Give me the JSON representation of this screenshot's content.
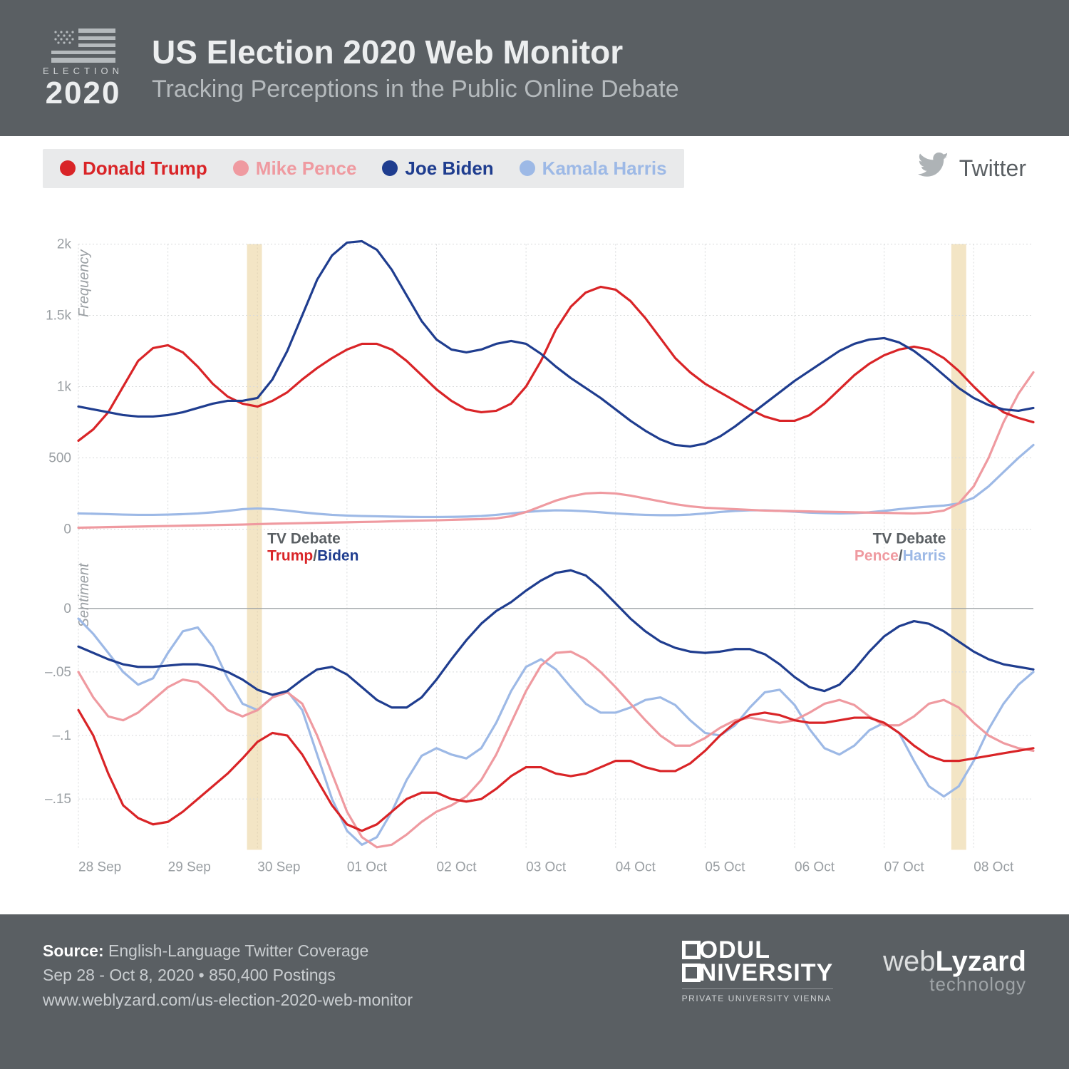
{
  "header": {
    "logo_election": "ELECTION",
    "logo_year": "2020",
    "title": "US Election 2020 Web Monitor",
    "subtitle": "Tracking Perceptions in the Public Online Debate"
  },
  "legend": {
    "items": [
      {
        "label": "Donald Trump",
        "color": "#d92427"
      },
      {
        "label": "Mike Pence",
        "color": "#ef9aa0"
      },
      {
        "label": "Joe Biden",
        "color": "#1f3d8f"
      },
      {
        "label": "Kamala Harris",
        "color": "#9db9e6"
      }
    ],
    "source_label": "Twitter"
  },
  "chart": {
    "background": "#ffffff",
    "grid_color": "#d8dadb",
    "axis_color": "#9a9fa3",
    "band_color": "#e9cf96",
    "x_dates": [
      "28 Sep",
      "29 Sep",
      "30 Sep",
      "01 Oct",
      "02 Oct",
      "03 Oct",
      "04 Oct",
      "05 Oct",
      "06 Oct",
      "07 Oct",
      "08 Oct"
    ],
    "x_samples_per_day": 6,
    "frequency": {
      "axis_label": "Frequency",
      "ymin": 0,
      "ymax": 2000,
      "yticks": [
        0,
        500,
        1000,
        1500,
        2000
      ],
      "ytick_labels": [
        "0",
        "500",
        "1k",
        "1.5k",
        "2k"
      ],
      "series": {
        "trump": [
          620,
          700,
          820,
          1000,
          1180,
          1270,
          1290,
          1240,
          1140,
          1020,
          930,
          880,
          860,
          900,
          960,
          1050,
          1130,
          1200,
          1260,
          1300,
          1300,
          1260,
          1180,
          1080,
          980,
          900,
          840,
          820,
          830,
          880,
          1000,
          1180,
          1400,
          1560,
          1660,
          1700,
          1680,
          1600,
          1480,
          1340,
          1200,
          1100,
          1020,
          960,
          900,
          840,
          790,
          760,
          760,
          800,
          880,
          980,
          1080,
          1160,
          1220,
          1260,
          1280,
          1260,
          1200,
          1110,
          1000,
          900,
          820,
          780,
          750
        ],
        "pence": [
          10,
          12,
          14,
          16,
          18,
          20,
          22,
          24,
          26,
          28,
          30,
          32,
          35,
          38,
          40,
          42,
          44,
          46,
          48,
          50,
          52,
          55,
          58,
          60,
          62,
          65,
          68,
          70,
          75,
          90,
          120,
          160,
          200,
          230,
          250,
          255,
          250,
          235,
          215,
          195,
          175,
          160,
          150,
          145,
          140,
          135,
          130,
          128,
          126,
          124,
          122,
          120,
          118,
          116,
          114,
          112,
          110,
          115,
          130,
          180,
          300,
          500,
          750,
          950,
          1100
        ],
        "biden": [
          860,
          840,
          820,
          800,
          790,
          790,
          800,
          820,
          850,
          880,
          900,
          900,
          920,
          1050,
          1250,
          1500,
          1750,
          1920,
          2010,
          2020,
          1960,
          1820,
          1640,
          1460,
          1330,
          1260,
          1240,
          1260,
          1300,
          1320,
          1300,
          1230,
          1140,
          1060,
          990,
          920,
          840,
          760,
          690,
          630,
          590,
          580,
          600,
          650,
          720,
          800,
          880,
          960,
          1040,
          1110,
          1180,
          1250,
          1300,
          1330,
          1340,
          1310,
          1250,
          1170,
          1080,
          990,
          920,
          870,
          840,
          830,
          850
        ],
        "harris": [
          110,
          108,
          105,
          102,
          100,
          100,
          102,
          105,
          110,
          118,
          128,
          140,
          145,
          140,
          130,
          118,
          108,
          100,
          95,
          92,
          90,
          88,
          86,
          85,
          85,
          86,
          88,
          92,
          100,
          110,
          120,
          128,
          132,
          130,
          125,
          118,
          110,
          104,
          100,
          98,
          98,
          102,
          110,
          120,
          128,
          132,
          132,
          128,
          122,
          116,
          112,
          110,
          112,
          118,
          128,
          140,
          150,
          158,
          165,
          180,
          220,
          300,
          400,
          500,
          590
        ]
      }
    },
    "sentiment": {
      "axis_label": "Sentiment",
      "ymin": -0.19,
      "ymax": 0.04,
      "yticks": [
        0,
        -0.05,
        -0.1,
        -0.15
      ],
      "ytick_labels": [
        "0",
        "–.05",
        "–.1",
        "–.15"
      ],
      "series": {
        "trump": [
          -0.08,
          -0.1,
          -0.13,
          -0.155,
          -0.165,
          -0.17,
          -0.168,
          -0.16,
          -0.15,
          -0.14,
          -0.13,
          -0.118,
          -0.105,
          -0.098,
          -0.1,
          -0.115,
          -0.135,
          -0.155,
          -0.17,
          -0.175,
          -0.17,
          -0.16,
          -0.15,
          -0.145,
          -0.145,
          -0.15,
          -0.152,
          -0.15,
          -0.142,
          -0.132,
          -0.125,
          -0.125,
          -0.13,
          -0.132,
          -0.13,
          -0.125,
          -0.12,
          -0.12,
          -0.125,
          -0.128,
          -0.128,
          -0.122,
          -0.112,
          -0.1,
          -0.09,
          -0.084,
          -0.082,
          -0.084,
          -0.088,
          -0.09,
          -0.09,
          -0.088,
          -0.086,
          -0.086,
          -0.09,
          -0.098,
          -0.108,
          -0.116,
          -0.12,
          -0.12,
          -0.118,
          -0.116,
          -0.114,
          -0.112,
          -0.11
        ],
        "pence": [
          -0.05,
          -0.07,
          -0.085,
          -0.088,
          -0.082,
          -0.072,
          -0.062,
          -0.056,
          -0.058,
          -0.068,
          -0.08,
          -0.085,
          -0.08,
          -0.07,
          -0.066,
          -0.075,
          -0.1,
          -0.13,
          -0.16,
          -0.18,
          -0.188,
          -0.186,
          -0.178,
          -0.168,
          -0.16,
          -0.155,
          -0.148,
          -0.135,
          -0.115,
          -0.09,
          -0.065,
          -0.045,
          -0.035,
          -0.034,
          -0.04,
          -0.05,
          -0.062,
          -0.075,
          -0.088,
          -0.1,
          -0.108,
          -0.108,
          -0.102,
          -0.094,
          -0.088,
          -0.086,
          -0.088,
          -0.09,
          -0.088,
          -0.082,
          -0.075,
          -0.072,
          -0.076,
          -0.085,
          -0.092,
          -0.092,
          -0.085,
          -0.075,
          -0.072,
          -0.078,
          -0.09,
          -0.1,
          -0.106,
          -0.11,
          -0.112
        ],
        "biden": [
          -0.03,
          -0.035,
          -0.04,
          -0.044,
          -0.046,
          -0.046,
          -0.045,
          -0.044,
          -0.044,
          -0.046,
          -0.05,
          -0.056,
          -0.064,
          -0.068,
          -0.065,
          -0.056,
          -0.048,
          -0.046,
          -0.052,
          -0.062,
          -0.072,
          -0.078,
          -0.078,
          -0.07,
          -0.056,
          -0.04,
          -0.025,
          -0.012,
          -0.002,
          0.005,
          0.014,
          0.022,
          0.028,
          0.03,
          0.026,
          0.016,
          0.004,
          -0.008,
          -0.018,
          -0.026,
          -0.031,
          -0.034,
          -0.035,
          -0.034,
          -0.032,
          -0.032,
          -0.036,
          -0.044,
          -0.054,
          -0.062,
          -0.065,
          -0.06,
          -0.048,
          -0.034,
          -0.022,
          -0.014,
          -0.01,
          -0.012,
          -0.018,
          -0.026,
          -0.034,
          -0.04,
          -0.044,
          -0.046,
          -0.048
        ],
        "harris": [
          -0.008,
          -0.02,
          -0.035,
          -0.05,
          -0.06,
          -0.055,
          -0.035,
          -0.018,
          -0.015,
          -0.03,
          -0.055,
          -0.075,
          -0.08,
          -0.07,
          -0.065,
          -0.08,
          -0.115,
          -0.15,
          -0.175,
          -0.186,
          -0.18,
          -0.16,
          -0.135,
          -0.116,
          -0.11,
          -0.115,
          -0.118,
          -0.11,
          -0.09,
          -0.065,
          -0.046,
          -0.04,
          -0.048,
          -0.062,
          -0.075,
          -0.082,
          -0.082,
          -0.078,
          -0.072,
          -0.07,
          -0.076,
          -0.088,
          -0.098,
          -0.1,
          -0.092,
          -0.078,
          -0.066,
          -0.064,
          -0.076,
          -0.095,
          -0.11,
          -0.115,
          -0.108,
          -0.096,
          -0.09,
          -0.098,
          -0.12,
          -0.14,
          -0.148,
          -0.14,
          -0.12,
          -0.095,
          -0.075,
          -0.06,
          -0.05
        ]
      }
    },
    "debate_bands": [
      {
        "x_index_start": 11.3,
        "x_index_end": 12.3,
        "label_lines": [
          {
            "text": "TV Debate",
            "color": "#5a5f63"
          },
          {
            "text": "Trump",
            "color": "#d92427"
          },
          {
            "text": "/",
            "color": "#5a5f63"
          },
          {
            "text": "Biden",
            "color": "#1f3d8f"
          }
        ]
      },
      {
        "x_index_start": 58.5,
        "x_index_end": 59.5,
        "label_lines": [
          {
            "text": "TV Debate",
            "color": "#5a5f63"
          },
          {
            "text": "Pence",
            "color": "#ef9aa0"
          },
          {
            "text": "/",
            "color": "#5a5f63"
          },
          {
            "text": "Harris",
            "color": "#9db9e6"
          }
        ]
      }
    ]
  },
  "footer": {
    "source_label": "Source:",
    "source_line1": "English-Language Twitter Coverage",
    "source_line2": "Sep 28 - Oct 8, 2020 • 850,400 Postings",
    "source_line3": "www.weblyzard.com/us-election-2020-web-monitor",
    "modul_line1a": "ODUL",
    "modul_line1b": "NIVERSITY",
    "modul_line2": "PRIVATE UNIVERSITY VIENNA",
    "weblyzard_a": "web",
    "weblyzard_b": "Lyzard",
    "weblyzard_c": "technology"
  }
}
